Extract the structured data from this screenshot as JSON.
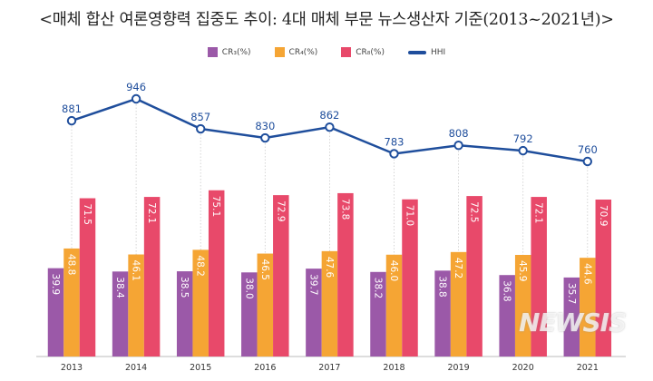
{
  "chart_data": {
    "type": "bar+line",
    "title": "<매체 합산 여론영향력 집중도 추이: 4대 매체 부문 뉴스생산자 기준(2013~2021년)>",
    "categories": [
      "2013",
      "2014",
      "2015",
      "2016",
      "2017",
      "2018",
      "2019",
      "2020",
      "2021"
    ],
    "series": [
      {
        "name": "CR₃(%)",
        "type": "bar",
        "color": "#9b59a8",
        "values": [
          39.9,
          38.4,
          38.5,
          38.0,
          39.7,
          38.2,
          38.8,
          36.8,
          35.7
        ]
      },
      {
        "name": "CR₄(%)",
        "type": "bar",
        "color": "#f5a534",
        "values": [
          48.8,
          46.1,
          48.2,
          46.5,
          47.6,
          46.0,
          47.2,
          45.9,
          44.6
        ]
      },
      {
        "name": "CR₈(%)",
        "type": "bar",
        "color": "#e8496a",
        "values": [
          71.5,
          72.1,
          75.1,
          72.9,
          73.8,
          71.0,
          72.5,
          72.1,
          70.9
        ]
      },
      {
        "name": "HHI",
        "type": "line",
        "color": "#1f4e9c",
        "values": [
          881,
          946,
          857,
          830,
          862,
          783,
          808,
          792,
          760
        ]
      }
    ],
    "legend_position": "top",
    "grid": false,
    "watermark": "NEWSIS"
  }
}
